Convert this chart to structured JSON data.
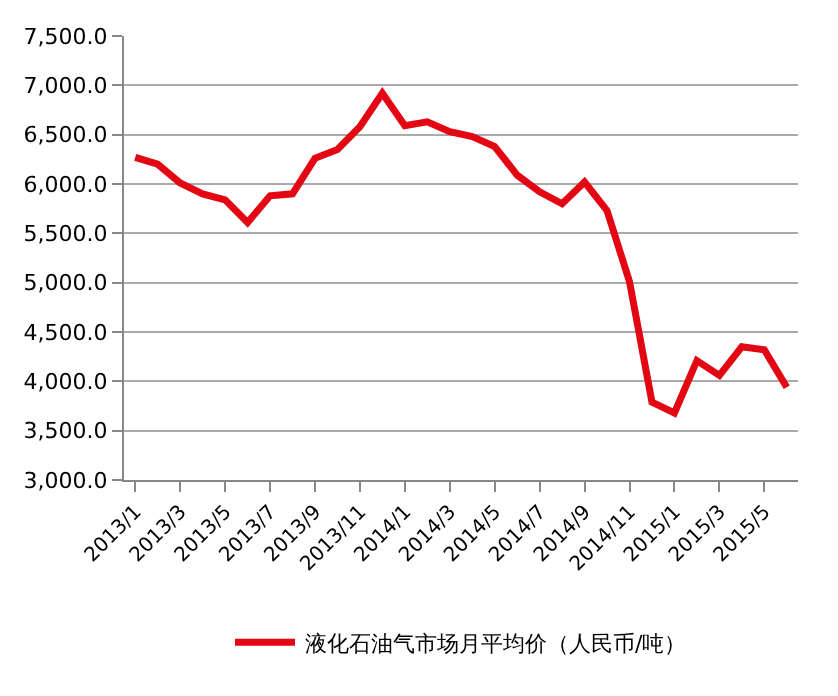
{
  "chart_data": {
    "type": "line",
    "categories": [
      "2013/1",
      null,
      "2013/3",
      null,
      "2013/5",
      null,
      "2013/7",
      null,
      "2013/9",
      null,
      "2013/11",
      null,
      "2014/1",
      null,
      "2014/3",
      null,
      "2014/5",
      null,
      "2014/7",
      null,
      "2014/9",
      null,
      "2014/11",
      null,
      "2015/1",
      null,
      "2015/3",
      null,
      "2015/5",
      null
    ],
    "series": [
      {
        "name": "液化石油气市场月平均价（人民币/吨）",
        "color": "#e30613",
        "values": [
          6270,
          6200,
          6010,
          5900,
          5840,
          5610,
          5880,
          5900,
          6260,
          6350,
          6580,
          6920,
          6590,
          6630,
          6530,
          6480,
          6380,
          6090,
          5920,
          5800,
          6020,
          5730,
          5010,
          3790,
          3680,
          4210,
          4060,
          4350,
          4320,
          3940
        ]
      }
    ],
    "ylim": [
      3000,
      7500
    ],
    "yticks": [
      {
        "value": 3000,
        "label": "3,000.0"
      },
      {
        "value": 3500,
        "label": "3,500.0"
      },
      {
        "value": 4000,
        "label": "4,000.0"
      },
      {
        "value": 4500,
        "label": "4,500.0"
      },
      {
        "value": 5000,
        "label": "5,000.0"
      },
      {
        "value": 5500,
        "label": "5,500.0"
      },
      {
        "value": 6000,
        "label": "6,000.0"
      },
      {
        "value": 6500,
        "label": "6,500.0"
      },
      {
        "value": 7000,
        "label": "7,000.0"
      },
      {
        "value": 7500,
        "label": "7,500.0"
      }
    ],
    "grid": "y",
    "legend": "bottom",
    "marker": "none",
    "line_style": "solid"
  }
}
